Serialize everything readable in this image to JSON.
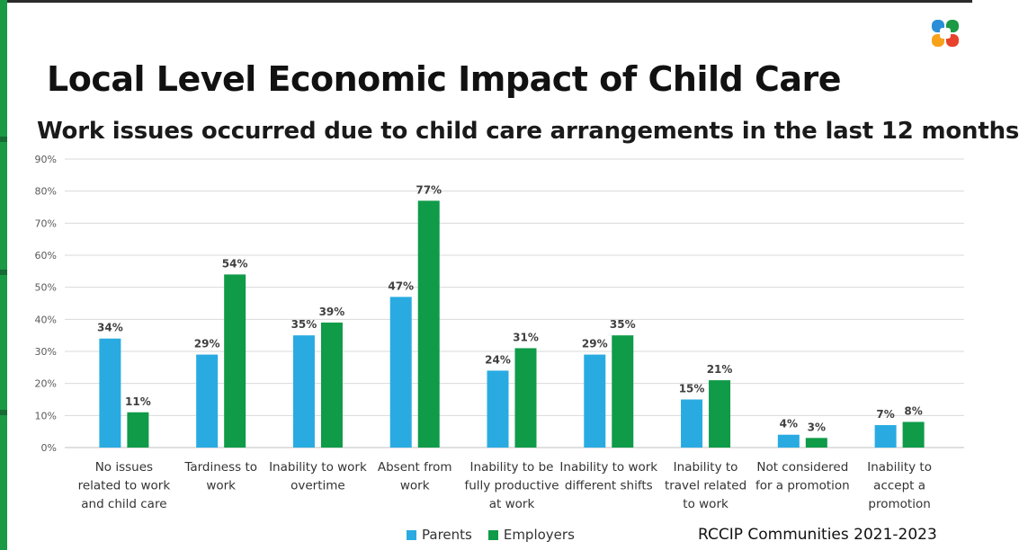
{
  "header": {
    "title": "Local Level Economic Impact of Child Care",
    "subtitle": "Work issues occurred due to child care arrangements in the last 12 months"
  },
  "source": "RCCIP Communities 2021-2023",
  "colors": {
    "parents": "#29abe2",
    "employers": "#0f9b48",
    "grid": "#d9d9d9",
    "accent_bar": "#1b9a45"
  },
  "chart_data": {
    "type": "bar",
    "title": "Work issues occurred due to child care arrangements in the last 12 months",
    "xlabel": "",
    "ylabel": "",
    "ylim": [
      0,
      90
    ],
    "yticks": [
      0,
      10,
      20,
      30,
      40,
      50,
      60,
      70,
      80,
      90
    ],
    "ytick_labels": [
      "0%",
      "10%",
      "20%",
      "30%",
      "40%",
      "50%",
      "60%",
      "70%",
      "80%",
      "90%"
    ],
    "grid": true,
    "legend_position": "bottom",
    "categories": [
      [
        "No issues",
        "related to work",
        "and child care"
      ],
      [
        "Tardiness to",
        "work"
      ],
      [
        "Inability to work",
        "overtime"
      ],
      [
        "Absent from",
        "work"
      ],
      [
        "Inability to be",
        "fully productive",
        "at work"
      ],
      [
        "Inability to work",
        "different shifts"
      ],
      [
        "Inability to",
        "travel related",
        "to work"
      ],
      [
        "Not considered",
        "for a promotion"
      ],
      [
        "Inability to",
        "accept a",
        "promotion"
      ]
    ],
    "series": [
      {
        "name": "Parents",
        "values": [
          34,
          29,
          35,
          47,
          24,
          29,
          15,
          4,
          7
        ]
      },
      {
        "name": "Employers",
        "values": [
          11,
          54,
          39,
          77,
          31,
          35,
          21,
          3,
          8
        ]
      }
    ]
  }
}
